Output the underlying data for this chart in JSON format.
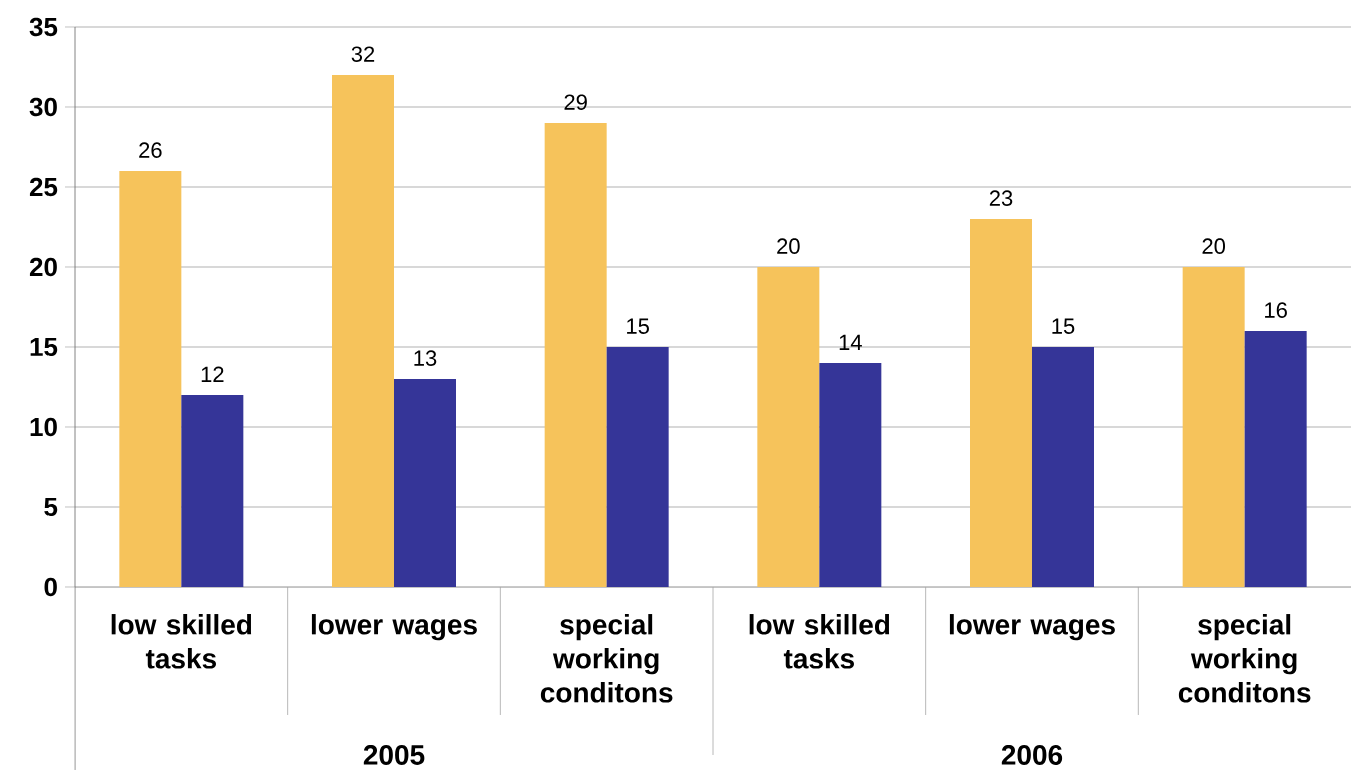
{
  "chart_data": {
    "type": "bar",
    "categories": [
      "low skilled tasks",
      "lower wages",
      "special working conditons",
      "low skilled tasks",
      "lower wages",
      "special working conditons"
    ],
    "series": [
      {
        "color": "#f6c35b",
        "values": [
          26,
          32,
          29,
          20,
          23,
          20
        ]
      },
      {
        "color": "#353598",
        "values": [
          12,
          13,
          15,
          14,
          15,
          16
        ]
      }
    ],
    "annotations": [
      "2005",
      "2006"
    ],
    "ylim": [
      0,
      35
    ],
    "yticks": [
      0,
      5,
      10,
      15,
      20,
      25,
      30,
      35
    ],
    "grid": "y",
    "data_labels": true
  }
}
